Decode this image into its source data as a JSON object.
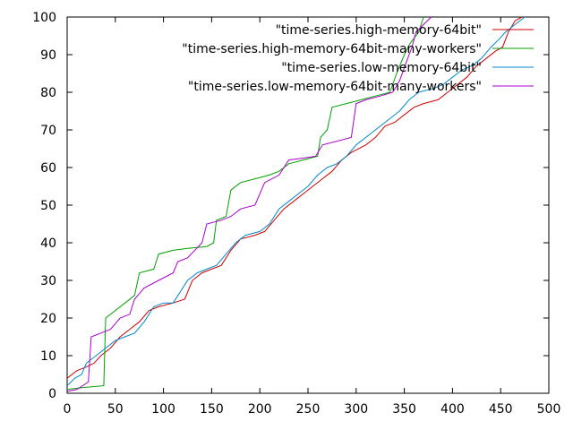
{
  "chart_data": {
    "type": "line",
    "title": "",
    "xlabel": "",
    "ylabel": "",
    "xlim": [
      0,
      500
    ],
    "ylim": [
      0,
      100
    ],
    "x_ticks": [
      0,
      50,
      100,
      150,
      200,
      250,
      300,
      350,
      400,
      450,
      500
    ],
    "y_ticks": [
      0,
      10,
      20,
      30,
      40,
      50,
      60,
      70,
      80,
      90,
      100
    ],
    "grid": false,
    "legend_position": "top-right",
    "series": [
      {
        "name": "\"time-series.high-memory-64bit\"",
        "color": "#cc0000",
        "points": [
          [
            0,
            4
          ],
          [
            5,
            5
          ],
          [
            10,
            6
          ],
          [
            20,
            7
          ],
          [
            28,
            8
          ],
          [
            35,
            10
          ],
          [
            45,
            12
          ],
          [
            55,
            15
          ],
          [
            65,
            17
          ],
          [
            75,
            19
          ],
          [
            85,
            22
          ],
          [
            95,
            23
          ],
          [
            110,
            24
          ],
          [
            122,
            25
          ],
          [
            130,
            30
          ],
          [
            140,
            32
          ],
          [
            150,
            33
          ],
          [
            160,
            34
          ],
          [
            170,
            38
          ],
          [
            180,
            41
          ],
          [
            195,
            42
          ],
          [
            205,
            43
          ],
          [
            215,
            46
          ],
          [
            225,
            49
          ],
          [
            235,
            51
          ],
          [
            245,
            53
          ],
          [
            255,
            55
          ],
          [
            265,
            57
          ],
          [
            275,
            59
          ],
          [
            285,
            62
          ],
          [
            295,
            64
          ],
          [
            310,
            66
          ],
          [
            320,
            68
          ],
          [
            330,
            71
          ],
          [
            340,
            72
          ],
          [
            350,
            74
          ],
          [
            360,
            76
          ],
          [
            370,
            77
          ],
          [
            385,
            78
          ],
          [
            395,
            80
          ],
          [
            405,
            82
          ],
          [
            415,
            84
          ],
          [
            425,
            87
          ],
          [
            435,
            89
          ],
          [
            445,
            91
          ],
          [
            452,
            92
          ],
          [
            458,
            96
          ],
          [
            465,
            99
          ],
          [
            472,
            100
          ]
        ]
      },
      {
        "name": "\"time-series.high-memory-64bit-many-workers\"",
        "color": "#00a000",
        "points": [
          [
            0,
            1
          ],
          [
            15,
            1.5
          ],
          [
            38,
            2
          ],
          [
            40,
            20
          ],
          [
            50,
            22
          ],
          [
            60,
            24
          ],
          [
            70,
            26
          ],
          [
            75,
            32
          ],
          [
            90,
            33
          ],
          [
            95,
            37
          ],
          [
            110,
            38
          ],
          [
            125,
            38.5
          ],
          [
            145,
            39
          ],
          [
            152,
            40
          ],
          [
            155,
            46
          ],
          [
            165,
            47
          ],
          [
            170,
            54
          ],
          [
            180,
            56
          ],
          [
            195,
            57
          ],
          [
            210,
            58
          ],
          [
            220,
            59
          ],
          [
            230,
            61
          ],
          [
            245,
            62
          ],
          [
            260,
            63
          ],
          [
            263,
            68
          ],
          [
            270,
            70
          ],
          [
            275,
            76
          ],
          [
            290,
            77
          ],
          [
            305,
            78
          ],
          [
            320,
            79
          ],
          [
            335,
            80
          ],
          [
            342,
            85
          ],
          [
            350,
            90
          ],
          [
            356,
            93
          ],
          [
            365,
            96
          ],
          [
            370,
            100
          ]
        ]
      },
      {
        "name": "\"time-series.low-memory-64bit\"",
        "color": "#0088cc",
        "points": [
          [
            0,
            2
          ],
          [
            8,
            4
          ],
          [
            15,
            5
          ],
          [
            20,
            8
          ],
          [
            30,
            10
          ],
          [
            40,
            12
          ],
          [
            50,
            14
          ],
          [
            60,
            15
          ],
          [
            70,
            16
          ],
          [
            80,
            19
          ],
          [
            90,
            23
          ],
          [
            100,
            24
          ],
          [
            110,
            24
          ],
          [
            125,
            30
          ],
          [
            135,
            32
          ],
          [
            145,
            33
          ],
          [
            155,
            34
          ],
          [
            165,
            37
          ],
          [
            175,
            40
          ],
          [
            185,
            42
          ],
          [
            200,
            43
          ],
          [
            210,
            45
          ],
          [
            220,
            49
          ],
          [
            230,
            51
          ],
          [
            240,
            53
          ],
          [
            250,
            55
          ],
          [
            260,
            58
          ],
          [
            270,
            60
          ],
          [
            280,
            61
          ],
          [
            290,
            63
          ],
          [
            300,
            66
          ],
          [
            310,
            68
          ],
          [
            320,
            70
          ],
          [
            335,
            73
          ],
          [
            345,
            75
          ],
          [
            355,
            78
          ],
          [
            365,
            80
          ],
          [
            380,
            81
          ],
          [
            390,
            82
          ],
          [
            400,
            84
          ],
          [
            410,
            86
          ],
          [
            420,
            87
          ],
          [
            430,
            89
          ],
          [
            440,
            92
          ],
          [
            448,
            94
          ],
          [
            455,
            96
          ],
          [
            465,
            98
          ],
          [
            475,
            100
          ]
        ]
      },
      {
        "name": "\"time-series.low-memory-64bit-many-workers\"",
        "color": "#aa00cc",
        "points": [
          [
            0,
            0.5
          ],
          [
            10,
            1
          ],
          [
            22,
            3
          ],
          [
            25,
            15
          ],
          [
            35,
            16
          ],
          [
            45,
            17
          ],
          [
            55,
            20
          ],
          [
            65,
            21
          ],
          [
            70,
            25
          ],
          [
            80,
            28
          ],
          [
            95,
            30
          ],
          [
            110,
            32
          ],
          [
            115,
            35
          ],
          [
            125,
            36
          ],
          [
            140,
            40
          ],
          [
            145,
            45
          ],
          [
            160,
            46
          ],
          [
            170,
            47
          ],
          [
            180,
            49
          ],
          [
            195,
            50
          ],
          [
            205,
            56
          ],
          [
            220,
            58
          ],
          [
            230,
            62
          ],
          [
            245,
            62.5
          ],
          [
            258,
            63
          ],
          [
            265,
            66
          ],
          [
            280,
            67
          ],
          [
            295,
            68
          ],
          [
            300,
            77
          ],
          [
            310,
            78
          ],
          [
            325,
            79
          ],
          [
            338,
            80
          ],
          [
            345,
            83
          ],
          [
            352,
            88
          ],
          [
            358,
            92
          ],
          [
            362,
            96
          ],
          [
            370,
            98
          ],
          [
            378,
            100
          ]
        ]
      }
    ]
  }
}
